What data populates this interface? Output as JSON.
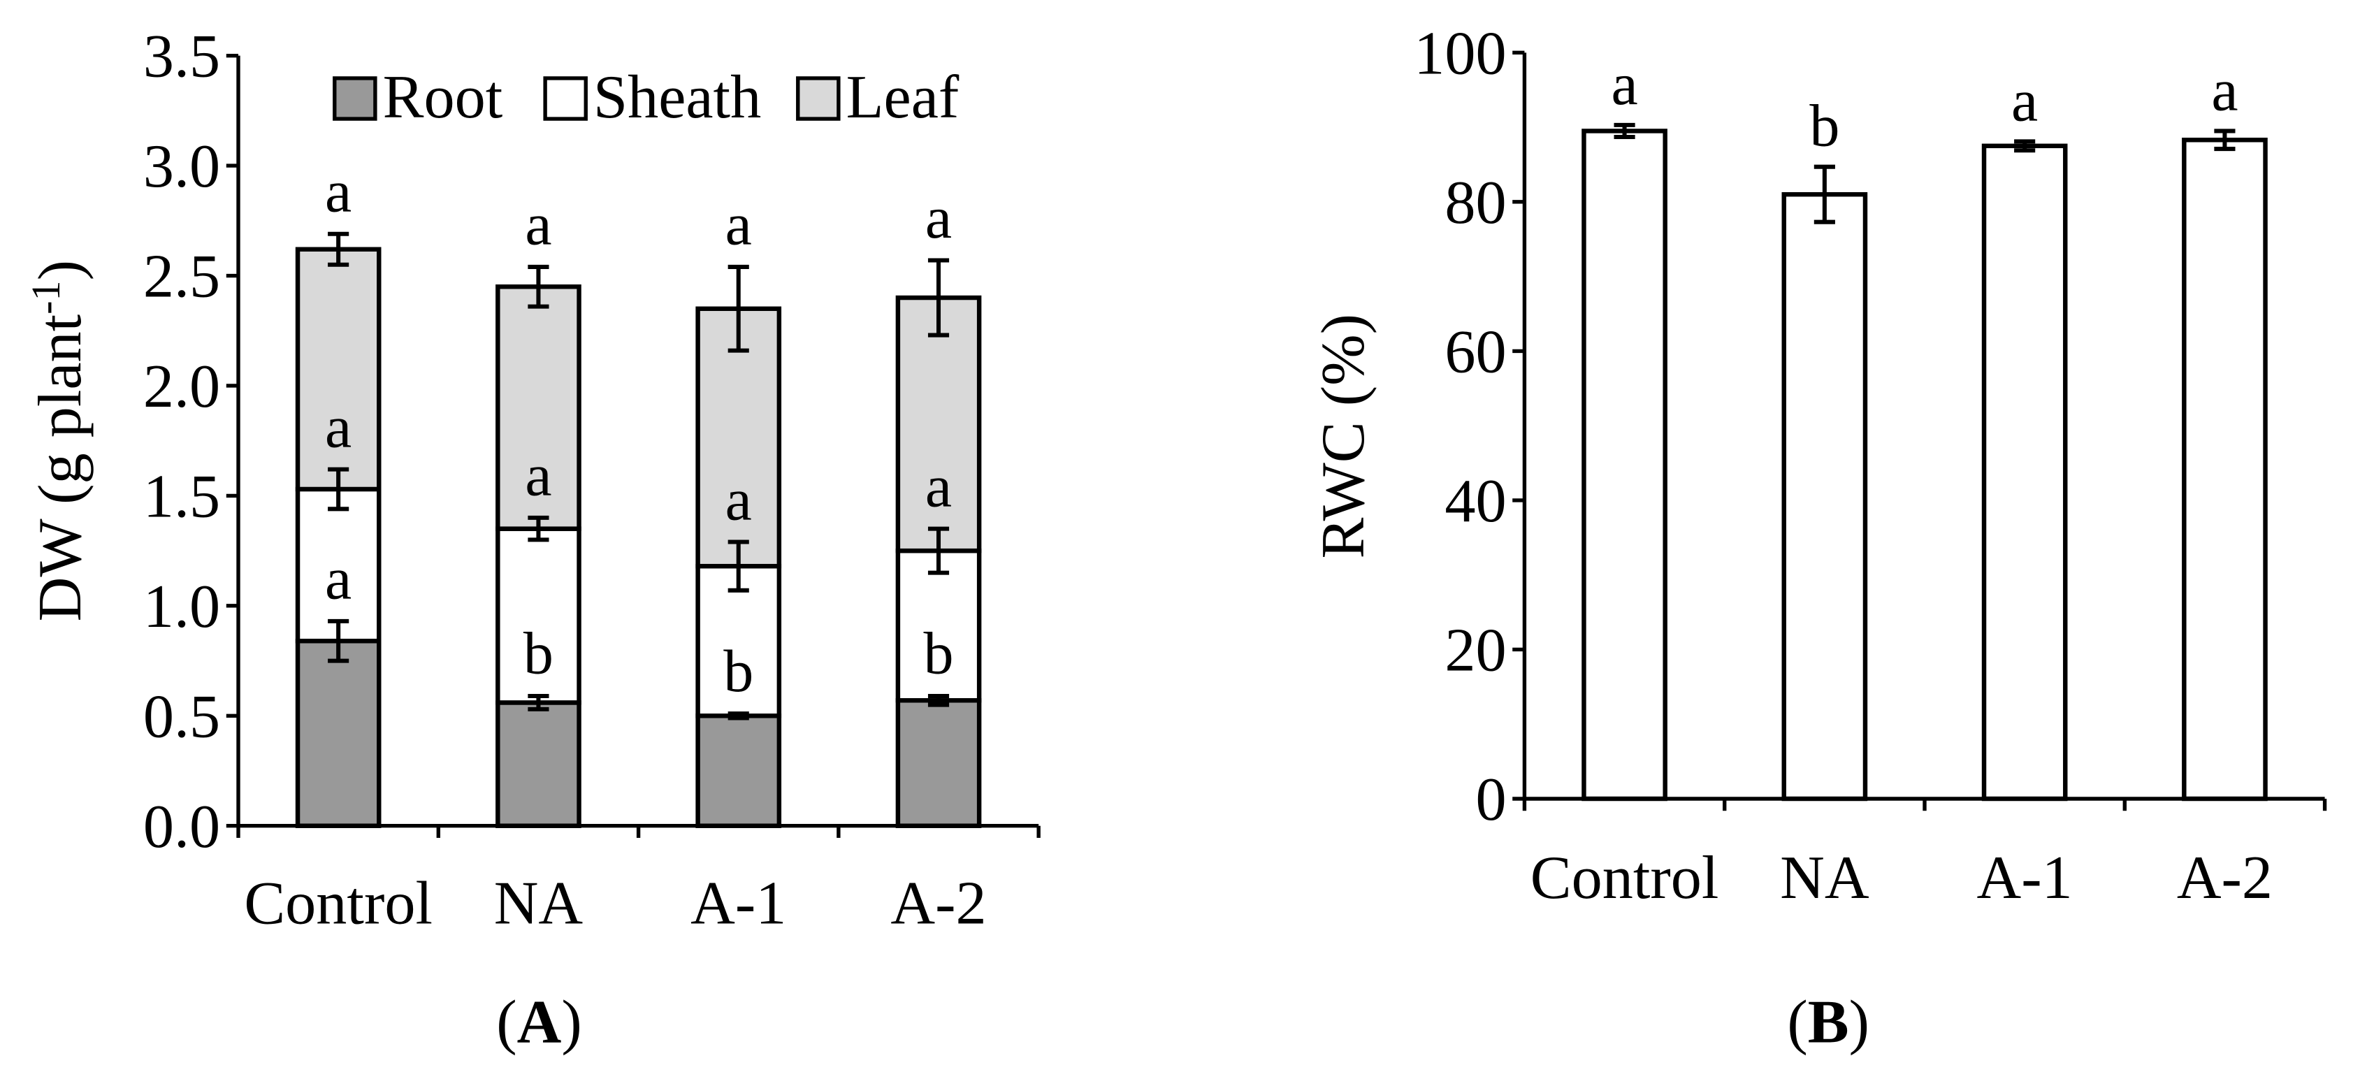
{
  "chart_data": [
    {
      "type": "bar",
      "stacked": true,
      "panel_label": "(A)",
      "categories": [
        "Control",
        "NA",
        "A-1",
        "A-2"
      ],
      "xlabel": "",
      "ylabel": {
        "text": "DW (g plant",
        "superscript": "-1",
        "suffix": ")"
      },
      "ylim": [
        0,
        3.5
      ],
      "ytick_labels": [
        "0.0",
        "0.5",
        "1.0",
        "1.5",
        "2.0",
        "2.5",
        "3.0",
        "3.5"
      ],
      "grid": false,
      "legend_position": "top",
      "series": [
        {
          "name": "Root",
          "color": "#999999",
          "values": [
            0.84,
            0.56,
            0.5,
            0.57
          ],
          "errors": [
            0.09,
            0.03,
            0.01,
            0.02
          ],
          "letters": [
            "a",
            "b",
            "b",
            "b"
          ]
        },
        {
          "name": "Sheath",
          "color": "#ffffff",
          "values": [
            0.69,
            0.79,
            0.68,
            0.68
          ],
          "errors": [
            0.09,
            0.05,
            0.11,
            0.1
          ],
          "letters": [
            "a",
            "a",
            "a",
            "a"
          ]
        },
        {
          "name": "Leaf",
          "color": "#d9d9d9",
          "values": [
            1.09,
            1.1,
            1.17,
            1.15
          ],
          "errors": [
            0.07,
            0.09,
            0.19,
            0.17
          ],
          "letters": [
            "a",
            "a",
            "a",
            "a"
          ]
        }
      ]
    },
    {
      "type": "bar",
      "stacked": false,
      "panel_label": "(B)",
      "categories": [
        "Control",
        "NA",
        "A-1",
        "A-2"
      ],
      "xlabel": "",
      "ylabel": {
        "text": "RWC (%)"
      },
      "ylim": [
        0,
        100
      ],
      "ytick_labels": [
        "0",
        "20",
        "40",
        "60",
        "80",
        "100"
      ],
      "grid": false,
      "series": [
        {
          "color": "#ffffff",
          "values": [
            89.5,
            81.0,
            87.5,
            88.3
          ],
          "errors": [
            0.8,
            3.7,
            0.6,
            1.2
          ],
          "letters": [
            "a",
            "b",
            "a",
            "a"
          ]
        }
      ]
    }
  ]
}
